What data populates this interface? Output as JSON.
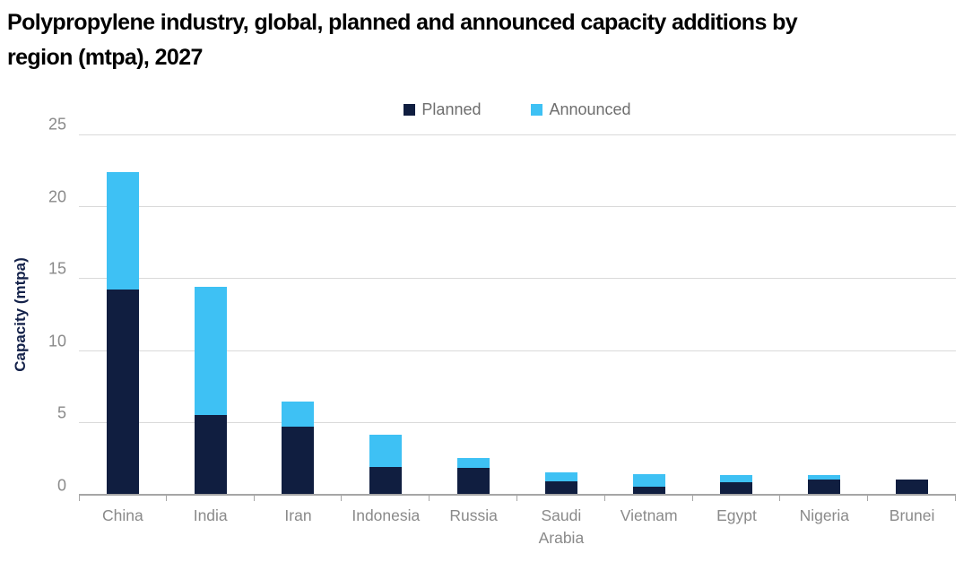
{
  "title": {
    "full": "Polypropylene industry, global, planned and announced capacity additions by region (mtpa), 2027",
    "lines": [
      "Polypropylene industry, global, planned and announced capacity additions by",
      "region (mtpa), 2027"
    ]
  },
  "colors": {
    "planned": "#101e40",
    "announced": "#3ec1f4",
    "gridline": "#d9d9d9",
    "axis_line": "#a6a6a6",
    "tick_label": "#8a8a8a",
    "legend_text": "#6e6e6e",
    "y_axis_title": "#14224a",
    "title_text": "#000000"
  },
  "chart_data": {
    "type": "bar",
    "stacked": true,
    "title": "Polypropylene industry, global, planned and announced capacity additions by region (mtpa), 2027",
    "categories": [
      "China",
      "India",
      "Iran",
      "Indonesia",
      "Russia",
      "Saudi Arabia",
      "Vietnam",
      "Egypt",
      "Nigeria",
      "Brunei"
    ],
    "series": [
      {
        "name": "Planned",
        "color": "#101e40",
        "values": [
          14.2,
          5.5,
          4.7,
          1.9,
          1.8,
          0.9,
          0.5,
          0.8,
          1.0,
          1.0
        ]
      },
      {
        "name": "Announced",
        "color": "#3ec1f4",
        "values": [
          8.2,
          8.9,
          1.7,
          2.2,
          0.7,
          0.6,
          0.9,
          0.5,
          0.3,
          0.0
        ]
      }
    ],
    "totals": [
      22.4,
      14.4,
      6.4,
      4.1,
      2.5,
      1.5,
      1.4,
      1.3,
      1.3,
      1.0
    ],
    "xlabel": "",
    "ylabel": "Capacity (mtpa)",
    "ylim": [
      0,
      25
    ],
    "yticks": [
      0,
      5,
      10,
      15,
      20,
      25
    ],
    "grid": true,
    "legend_position": "top"
  }
}
